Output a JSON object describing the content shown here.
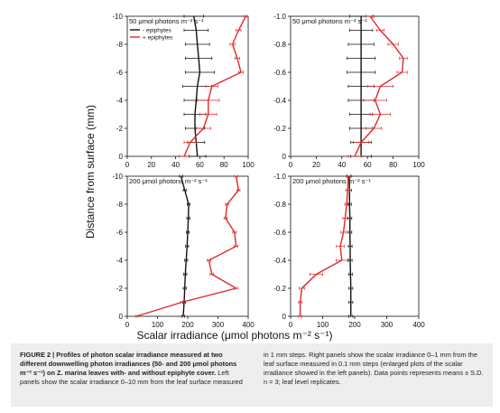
{
  "figure": {
    "y_axis_title": "Distance from surface (mm)",
    "x_axis_title": "Scalar irradiance (μmol photons m⁻² s⁻¹)"
  },
  "caption": {
    "bold": "FIGURE 2 | Profiles of photon scalar irradiance measured at two different downwelling photon irradiances (50- and 200 μmol photons m⁻² s⁻¹) on Z. marina leaves with- and without epiphyte cover.",
    "rest_left": " Left panels show the scalar irradiance 0–10 mm from the leaf surface measured",
    "right": "in 1 mm steps. Right panels show the scalar irradiance 0–1 mm from the leaf surface measured in 0.1 mm steps (enlarged plots of the scalar irradiance showed in the left panels). Data points represents means ± S.D. n = 3; leaf level replicates."
  },
  "colors": {
    "minus_epiphytes": "#111111",
    "plus_epiphytes": "#e0282a",
    "axis": "#111111"
  },
  "chart_data": [
    {
      "type": "line",
      "title": "50 μmol photons m⁻² s⁻¹",
      "xlim": [
        0,
        100
      ],
      "ylim": [
        0,
        -10
      ],
      "xticks": [
        "0",
        "20",
        "40",
        "60",
        "80",
        "100"
      ],
      "yticks": [
        "0",
        "-2",
        "-4",
        "-6",
        "-8",
        "-10"
      ],
      "legend": [
        "- epiphytes",
        "+ epiphytes"
      ],
      "series": [
        {
          "name": "- epiphytes",
          "color": "#111111",
          "y": [
            0,
            -1,
            -2,
            -3,
            -4,
            -5,
            -6,
            -7,
            -8,
            -9,
            -10
          ],
          "x": [
            58,
            57,
            56,
            56,
            57,
            58,
            60,
            59,
            58,
            57,
            55
          ],
          "err": [
            7,
            7,
            8,
            9,
            10,
            12,
            12,
            11,
            10,
            10,
            8
          ]
        },
        {
          "name": "+ epiphytes",
          "color": "#e0282a",
          "y": [
            0,
            -1,
            -2,
            -3,
            -4,
            -5,
            -6,
            -7,
            -8,
            -9,
            -10
          ],
          "x": [
            47,
            52,
            63,
            67,
            67,
            70,
            94,
            91,
            87,
            92,
            98
          ],
          "err": [
            4,
            5,
            6,
            7,
            9,
            5,
            2,
            2,
            2,
            2,
            1
          ]
        }
      ]
    },
    {
      "type": "line",
      "title": "50 μmol photons m⁻² s⁻¹",
      "xlim": [
        0,
        100
      ],
      "ylim": [
        0,
        -1.0
      ],
      "xticks": [
        "0",
        "20",
        "40",
        "60",
        "80",
        "100"
      ],
      "yticks": [
        "0",
        "-0.2",
        "-0.4",
        "-0.6",
        "-0.8",
        "-1.0"
      ],
      "series": [
        {
          "name": "- epiphytes",
          "color": "#111111",
          "y": [
            0,
            -0.1,
            -0.2,
            -0.3,
            -0.4,
            -0.5,
            -0.6,
            -0.7,
            -0.8,
            -0.9,
            -1.0
          ],
          "x": [
            55,
            55,
            55,
            55,
            55,
            55,
            55,
            55,
            55,
            55,
            55
          ],
          "err": [
            8,
            8,
            9,
            9,
            10,
            10,
            11,
            11,
            10,
            9,
            9
          ]
        },
        {
          "name": "+ epiphytes",
          "color": "#e0282a",
          "y": [
            0,
            -0.1,
            -0.2,
            -0.3,
            -0.4,
            -0.5,
            -0.6,
            -0.7,
            -0.8,
            -0.9,
            -1.0
          ],
          "x": [
            50,
            55,
            65,
            70,
            66,
            70,
            87,
            88,
            80,
            70,
            62
          ],
          "err": [
            5,
            6,
            6,
            8,
            9,
            10,
            4,
            3,
            4,
            3,
            3
          ]
        }
      ]
    },
    {
      "type": "line",
      "title": "200 μmol photons m⁻² s⁻¹",
      "xlim": [
        0,
        400
      ],
      "ylim": [
        0,
        -10
      ],
      "xticks": [
        "0",
        "100",
        "200",
        "300",
        "400"
      ],
      "yticks": [
        "0",
        "-2",
        "-4",
        "-6",
        "-8",
        "-10"
      ],
      "series": [
        {
          "name": "- epiphytes",
          "color": "#111111",
          "y": [
            0,
            -1,
            -2,
            -3,
            -4,
            -5,
            -6,
            -7,
            -8,
            -9,
            -10
          ],
          "x": [
            185,
            188,
            190,
            192,
            195,
            198,
            200,
            202,
            203,
            190,
            178
          ],
          "err": [
            5,
            5,
            5,
            5,
            5,
            5,
            5,
            5,
            5,
            5,
            5
          ]
        },
        {
          "name": "+ epiphytes",
          "color": "#e0282a",
          "y": [
            0,
            -1,
            -2,
            -3,
            -4,
            -5,
            -6,
            -7,
            -8,
            -9,
            -10
          ],
          "x": [
            30,
            180,
            360,
            280,
            270,
            360,
            355,
            325,
            330,
            368,
            360
          ],
          "err": [
            3,
            4,
            5,
            6,
            6,
            6,
            6,
            5,
            5,
            5,
            5
          ]
        }
      ]
    },
    {
      "type": "line",
      "title": "200 μmol photons m⁻² s⁻¹",
      "xlim": [
        0,
        400
      ],
      "ylim": [
        0,
        -1.0
      ],
      "xticks": [
        "0",
        "100",
        "200",
        "300",
        "400"
      ],
      "yticks": [
        "0",
        "-0.2",
        "-0.4",
        "-0.6",
        "-0.8",
        "-1.0"
      ],
      "series": [
        {
          "name": "- epiphytes",
          "color": "#111111",
          "y": [
            0,
            -0.1,
            -0.2,
            -0.3,
            -0.4,
            -0.5,
            -0.6,
            -0.7,
            -0.8,
            -0.9,
            -1.0
          ],
          "x": [
            188,
            188,
            188,
            187,
            186,
            186,
            185,
            185,
            184,
            184,
            183
          ],
          "err": [
            6,
            6,
            6,
            6,
            6,
            6,
            6,
            6,
            6,
            6,
            6
          ]
        },
        {
          "name": "+ epiphytes",
          "color": "#e0282a",
          "y": [
            0,
            -0.1,
            -0.2,
            -0.3,
            -0.4,
            -0.5,
            -0.6,
            -0.7,
            -0.8,
            -0.9,
            -1.0
          ],
          "x": [
            30,
            30,
            35,
            80,
            160,
            155,
            165,
            170,
            175,
            178,
            180
          ],
          "err": [
            5,
            5,
            8,
            20,
            18,
            12,
            8,
            7,
            6,
            6,
            6
          ]
        }
      ]
    }
  ]
}
